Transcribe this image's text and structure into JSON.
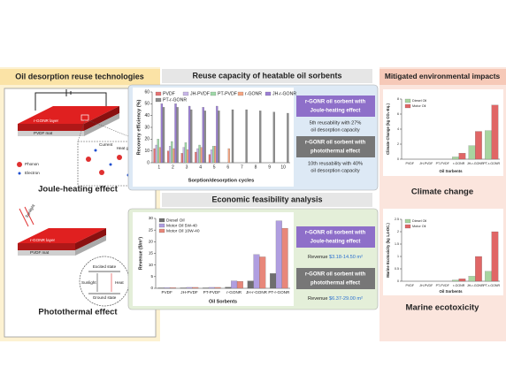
{
  "left_panel": {
    "title": "Oil desorption reuse technologies",
    "joule": {
      "layer": "r-GONR layer",
      "mat": "PVDF mat",
      "current": "Current",
      "heat": "Heat generation",
      "phonon": "Phonon",
      "electron": "Electron",
      "caption": "Joule-heating effect"
    },
    "photothermal": {
      "sunlight": "Sunlight",
      "layer": "r-GONR layer",
      "mat": "PVDF mat",
      "excited": "Excited state",
      "ground": "Ground state",
      "heat": "Heat",
      "sunlight_inner": "Sunlight",
      "caption": "Photothermal effect"
    }
  },
  "reuse_panel": {
    "title": "Reuse capacity of heatable oil sorbents",
    "notes": [
      {
        "lines": [
          "r-GONR oil sorbent with",
          "Joule-heating effect"
        ]
      },
      {
        "lines": [
          "5th reusability with 27%",
          "oil desorption capacity"
        ]
      },
      {
        "lines": [
          "r-GONR oil sorbent with",
          "photothermal effect"
        ]
      },
      {
        "lines": [
          "10th reusability with 40%",
          "oil desorption capacity"
        ]
      }
    ]
  },
  "economic_panel": {
    "title": "Economic feasibility analysis",
    "notes": [
      {
        "lines": [
          "r-GONR oil sorbent with",
          "Joule-heating effect"
        ]
      },
      {
        "lines": [
          "Revenue",
          "$3.18-14.50 m²"
        ]
      },
      {
        "lines": [
          "r-GONR oil sorbent with",
          "photothermal effect"
        ]
      },
      {
        "lines": [
          "Revenue",
          "$6.37-29.00 m²"
        ]
      }
    ]
  },
  "impact_panel": {
    "title": "Mitigated environmental impacts",
    "captions": [
      "Climate change",
      "Marine ecotoxicity"
    ]
  },
  "chart_data": [
    {
      "type": "bar",
      "categories": [
        "1",
        "2",
        "3",
        "4",
        "5",
        "6",
        "7",
        "8",
        "9",
        "10"
      ],
      "x_label": "Sorption/desorption cycles",
      "y_label": "Recovery efficiency (%)",
      "ylim": [
        0,
        60
      ],
      "yticks": [
        0,
        10,
        20,
        30,
        40,
        50,
        60
      ],
      "legend": "top",
      "series": [
        {
          "name": "PVDF",
          "color": "#e57373",
          "values": [
            12,
            10,
            8,
            9,
            7,
            null,
            null,
            null,
            null,
            null
          ]
        },
        {
          "name": "JH-PVDF",
          "color": "#c7b6e8",
          "values": [
            15,
            14,
            13,
            12,
            11,
            null,
            null,
            null,
            null,
            null
          ]
        },
        {
          "name": "PT-PVDF",
          "color": "#9fd8a8",
          "values": [
            20,
            18,
            17,
            15,
            14,
            null,
            null,
            null,
            null,
            null
          ]
        },
        {
          "name": "r-GONR",
          "color": "#f4a582",
          "values": [
            13,
            12,
            11,
            13,
            14,
            12,
            null,
            null,
            null,
            null
          ]
        },
        {
          "name": "JH-r-GONR",
          "color": "#9b7fd4",
          "values": [
            50,
            50,
            48,
            47,
            48,
            null,
            null,
            null,
            null,
            null
          ]
        },
        {
          "name": "PT-r-GONR",
          "color": "#8c8c8c",
          "values": [
            47,
            47,
            45,
            44,
            44,
            45,
            45,
            44,
            43,
            42
          ]
        }
      ]
    },
    {
      "type": "bar",
      "categories": [
        "PVDF",
        "JH-PVDF",
        "PT-PVDF",
        "r-GONR",
        "JH-r-GONR",
        "PT-r-GONR"
      ],
      "x_label": "Oil Sorbents",
      "y_label": "Revenue ($/m²)",
      "ylim": [
        0,
        30
      ],
      "yticks": [
        0,
        5,
        10,
        15,
        20,
        25,
        30
      ],
      "legend": "upper left",
      "series": [
        {
          "name": "Diesel Oil",
          "color": "#6e6e6e",
          "values": [
            0.2,
            0.2,
            0.2,
            0.5,
            3.18,
            6.37
          ]
        },
        {
          "name": "Motor Oil 5W-40",
          "color": "#b09ee0",
          "values": [
            0.3,
            0.4,
            0.4,
            3.2,
            14.5,
            29.0
          ]
        },
        {
          "name": "Motor Oil 10W-40",
          "color": "#e8877a",
          "values": [
            0.3,
            0.4,
            0.4,
            3.0,
            13.5,
            25.8
          ]
        }
      ]
    },
    {
      "type": "bar",
      "categories": [
        "PVDF",
        "JH-PVDF",
        "PT-PVDF",
        "r-GONR",
        "JH-r-GONR",
        "PT-r-GONR"
      ],
      "x_label": "Oil Sorbents",
      "y_label": "Climate Change (kg CO₂-Eq.)",
      "ylim": [
        0,
        8
      ],
      "yticks": [
        0,
        2,
        4,
        6,
        8
      ],
      "legend": "upper left",
      "series": [
        {
          "name": "Diesel Oil",
          "color": "#a8d5a0",
          "values": [
            0,
            0,
            0,
            0.3,
            1.8,
            3.8
          ]
        },
        {
          "name": "Motor Oil",
          "color": "#e06666",
          "values": [
            0,
            0,
            0,
            0.8,
            3.7,
            7.2
          ]
        }
      ]
    },
    {
      "type": "bar",
      "categories": [
        "PVDF",
        "JH-PVDF",
        "PT-PVDF",
        "r-GONR",
        "JH-r-GONR",
        "PT-r-GONR"
      ],
      "x_label": "Oil Sorbents",
      "y_label": "Marine Ecotoxicity (kg 1,4-DC.)",
      "ylim": [
        0,
        2.5
      ],
      "yticks": [
        0,
        0.5,
        1,
        1.5,
        2,
        2.5
      ],
      "legend": "upper left",
      "series": [
        {
          "name": "Diesel Oil",
          "color": "#a8d5a0",
          "values": [
            0,
            0,
            0,
            0.05,
            0.2,
            0.4
          ]
        },
        {
          "name": "Motor Oil",
          "color": "#e06666",
          "values": [
            0,
            0,
            0,
            0.1,
            1.0,
            2.0
          ]
        }
      ]
    }
  ]
}
